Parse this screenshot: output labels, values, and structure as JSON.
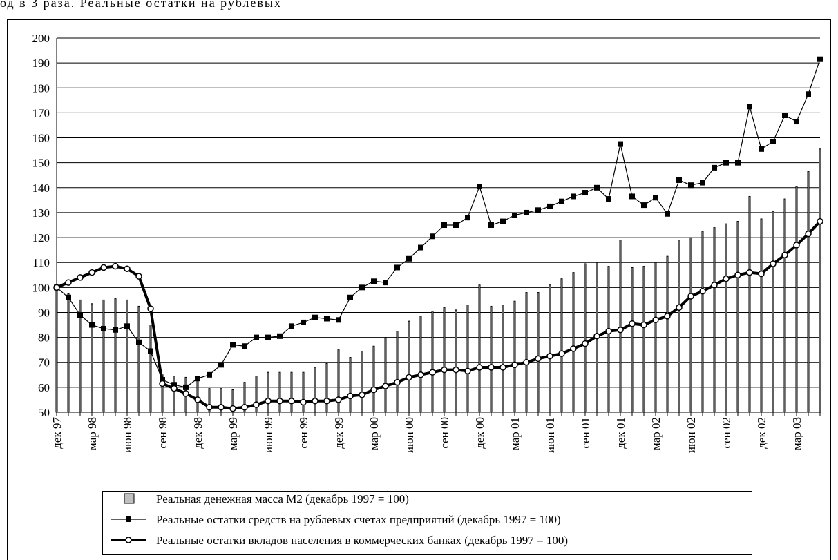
{
  "caption": "од в 3 раза. Реальные остатки на рублевых",
  "chart_data": {
    "type": "combo",
    "categories": [
      "дек 97",
      null,
      null,
      "мар 98",
      null,
      null,
      "июн 98",
      null,
      null,
      "сен 98",
      null,
      null,
      "дек 98",
      null,
      null,
      "мар 99",
      null,
      null,
      "июн 99",
      null,
      null,
      "сен 99",
      null,
      null,
      "дек 99",
      null,
      null,
      "мар 00",
      null,
      null,
      "июн 00",
      null,
      null,
      "сен 00",
      null,
      null,
      "дек 00",
      null,
      null,
      "мар 01",
      null,
      null,
      "июн 01",
      null,
      null,
      "сен 01",
      null,
      null,
      "дек 01",
      null,
      null,
      "мар 02",
      null,
      null,
      "июн 02",
      null,
      null,
      "сен 02",
      null,
      null,
      "дек 02",
      null,
      null,
      "мар 03",
      null,
      null
    ],
    "ylim": [
      50,
      200
    ],
    "yticks": [
      50,
      60,
      70,
      80,
      90,
      100,
      110,
      120,
      130,
      140,
      150,
      160,
      170,
      180,
      190,
      200
    ],
    "grid": true,
    "legend": "bottom",
    "series": [
      {
        "name": "Реальная денежная масса М2 (декабрь 1997 = 100)",
        "type": "bar",
        "color": "#c0c0c0",
        "values": [
          100,
          97.5,
          95,
          93.5,
          95,
          95.5,
          95,
          92.5,
          85,
          65,
          64.5,
          64,
          64,
          59.5,
          59.5,
          59,
          62,
          64.5,
          66,
          66,
          66,
          66,
          68,
          69.5,
          75,
          72,
          74.5,
          76.5,
          80,
          82.5,
          86.5,
          88.5,
          90.5,
          92,
          91,
          93,
          101,
          92.5,
          93,
          94.5,
          98,
          98,
          101,
          103.5,
          106,
          109.5,
          110,
          108.5,
          119,
          108,
          108.5,
          110,
          112.5,
          119,
          120,
          122.5,
          124,
          125.5,
          126.5,
          136.5,
          127.5,
          130.5,
          135.5,
          140.5,
          146.5,
          155.5
        ]
      },
      {
        "name": "Реальные остатки средств на рублевых счетах предприятий (декабрь 1997 = 100)",
        "type": "line",
        "marker": "square",
        "color": "#000000",
        "values": [
          100,
          96,
          89,
          85,
          83.5,
          83,
          84.5,
          78,
          74.5,
          63,
          61,
          60,
          63.5,
          65,
          69,
          77,
          76.5,
          80,
          80,
          80.5,
          84.5,
          86,
          88,
          87.5,
          87,
          96,
          100,
          102.5,
          102,
          108,
          111.5,
          116,
          120.5,
          125,
          125,
          128,
          140.5,
          125,
          126.5,
          129,
          130,
          131,
          132.5,
          134.5,
          136.5,
          138,
          140,
          135.5,
          157.5,
          136.5,
          133,
          136,
          129.5,
          143,
          141,
          142,
          148,
          150,
          150,
          172.5,
          155.5,
          158.5,
          169,
          166.5,
          177.5,
          191.5
        ]
      },
      {
        "name": "Реальные остатки вкладов населения в коммерческих банках (декабрь 1997 = 100)",
        "type": "line",
        "marker": "circle",
        "color": "#000000",
        "values": [
          100,
          102,
          104,
          106,
          108,
          108.5,
          107.5,
          104.5,
          91.5,
          61.5,
          59.5,
          57.5,
          55,
          52,
          52,
          51.5,
          52,
          53,
          54.5,
          54.5,
          54.5,
          54,
          54.5,
          54.5,
          55,
          56.5,
          57,
          59,
          60.5,
          62,
          64,
          65,
          66,
          67,
          67,
          66.5,
          68,
          68,
          68,
          69,
          70,
          71.5,
          72.5,
          73.5,
          75.5,
          77.5,
          80.5,
          82.5,
          83,
          85.5,
          85,
          87,
          88.5,
          92,
          96.5,
          98.5,
          101,
          103.5,
          105,
          106,
          105.5,
          109.5,
          113,
          117,
          121.5,
          126.5
        ]
      }
    ]
  }
}
